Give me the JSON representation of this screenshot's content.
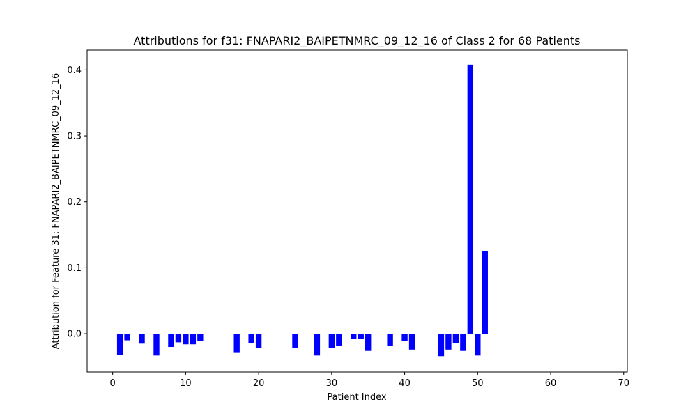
{
  "colors": {
    "bar": "#0000ff",
    "axis": "#000000",
    "background": "#ffffff"
  },
  "chart_data": {
    "type": "bar",
    "title": "Attributions for f31: FNAPARI2_BAIPETNMRC_09_12_16 of Class 2 for 68 Patients",
    "xlabel": "Patient Index",
    "ylabel": "Attribution for Feature 31: FNAPARI2_BAIPETNMRC_09_12_16",
    "xlim": [
      -3.5,
      70.5
    ],
    "ylim": [
      -0.058,
      0.43
    ],
    "xticks": [
      0,
      10,
      20,
      30,
      40,
      50,
      60,
      70
    ],
    "yticks": [
      0.0,
      0.1,
      0.2,
      0.3,
      0.4
    ],
    "ytick_labels": [
      "0.0",
      "0.1",
      "0.2",
      "0.3",
      "0.4"
    ],
    "bar_width": 0.8,
    "grid": false,
    "x": [
      1,
      2,
      4,
      6,
      8,
      9,
      10,
      11,
      12,
      17,
      19,
      20,
      25,
      28,
      30,
      31,
      33,
      34,
      35,
      38,
      40,
      41,
      45,
      46,
      47,
      48,
      49,
      50,
      51
    ],
    "values": [
      -0.032,
      -0.01,
      -0.015,
      -0.033,
      -0.02,
      -0.013,
      -0.016,
      -0.016,
      -0.011,
      -0.028,
      -0.014,
      -0.022,
      -0.021,
      -0.033,
      -0.021,
      -0.018,
      -0.008,
      -0.008,
      -0.026,
      -0.018,
      -0.011,
      -0.024,
      -0.034,
      -0.024,
      -0.014,
      -0.026,
      0.408,
      -0.033,
      0.125
    ]
  }
}
